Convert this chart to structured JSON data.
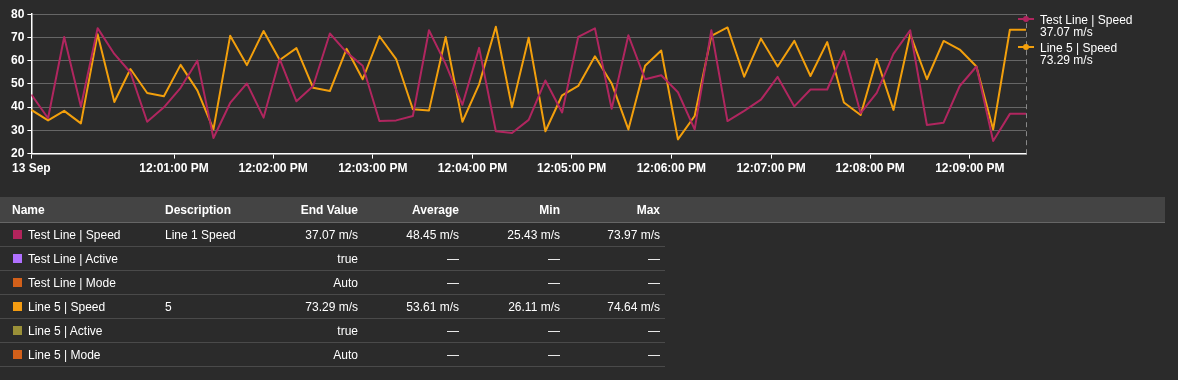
{
  "chart_data": [
    {
      "type": "line",
      "grid": "y",
      "legend": "top right",
      "marker": "none",
      "line_style": "solid",
      "xlim": [
        11.9928,
        12.1594
      ],
      "xticks": [
        {
          "value": 11.9928,
          "label": "13 Sep"
        },
        {
          "value": 12.0167,
          "label": "12:01:00 PM"
        },
        {
          "value": 12.0333,
          "label": "12:02:00 PM"
        },
        {
          "value": 12.05,
          "label": "12:03:00 PM"
        },
        {
          "value": 12.0667,
          "label": "12:04:00 PM"
        },
        {
          "value": 12.0833,
          "label": "12:05:00 PM"
        },
        {
          "value": 12.1,
          "label": "12:06:00 PM"
        },
        {
          "value": 12.1167,
          "label": "12:07:00 PM"
        },
        {
          "value": 12.1333,
          "label": "12:08:00 PM"
        },
        {
          "value": 12.15,
          "label": "12:09:00 PM"
        }
      ],
      "ylim": [
        20,
        80
      ],
      "yticks": [
        20,
        30,
        40,
        50,
        60,
        70,
        80
      ],
      "x": [
        11.9928,
        11.9956,
        11.9983,
        12.0011,
        12.0039,
        12.0067,
        12.0094,
        12.0122,
        12.015,
        12.0178,
        12.0206,
        12.0233,
        12.0261,
        12.0289,
        12.0317,
        12.0344,
        12.0372,
        12.04,
        12.0428,
        12.0456,
        12.0483,
        12.0511,
        12.0539,
        12.0567,
        12.0594,
        12.0622,
        12.065,
        12.0678,
        12.0706,
        12.0733,
        12.0761,
        12.0789,
        12.0817,
        12.0844,
        12.0872,
        12.09,
        12.0928,
        12.0956,
        12.0983,
        12.1011,
        12.1039,
        12.1067,
        12.1094,
        12.1122,
        12.115,
        12.1178,
        12.1206,
        12.1233,
        12.1261,
        12.1289,
        12.1317,
        12.1344,
        12.1372,
        12.14,
        12.1428,
        12.1456,
        12.1483,
        12.1511,
        12.1539,
        12.1567,
        12.1594
      ],
      "series": [
        {
          "name": "Test Line | Speed\n37.07 m/s",
          "color": "#b0265f",
          "values": [
            45.4,
            35.2,
            70.2,
            40.3,
            74.0,
            62.9,
            54.9,
            33.7,
            39.9,
            48.3,
            60.0,
            26.7,
            41.8,
            50.2,
            35.5,
            60.7,
            42.5,
            49.1,
            71.7,
            63.6,
            57.8,
            34.0,
            34.3,
            36.2,
            73.1,
            58.5,
            41.0,
            65.5,
            29.6,
            28.9,
            34.5,
            51.5,
            37.7,
            70.2,
            73.9,
            39.3,
            70.9,
            52.0,
            53.7,
            46.4,
            30.4,
            73.1,
            34.0,
            38.4,
            43.2,
            53.0,
            40.3,
            47.6,
            47.6,
            64.1,
            37.4,
            46.1,
            62.9,
            73.1,
            32.3,
            33.3,
            49.1,
            57.5,
            25.4,
            37.1,
            37.1
          ]
        },
        {
          "name": "Line 5 | Speed\n73.29 m/s",
          "color": "#f29f0c",
          "values": [
            38.8,
            34.3,
            38.4,
            33.0,
            71.4,
            42.2,
            56.4,
            46.1,
            44.7,
            58.2,
            47.2,
            30.4,
            70.7,
            58.1,
            72.8,
            60.3,
            65.4,
            48.3,
            46.9,
            65.1,
            52.0,
            70.5,
            60.7,
            39.1,
            38.5,
            70.2,
            33.7,
            49.8,
            74.6,
            39.9,
            69.9,
            29.6,
            45.1,
            49.1,
            61.9,
            50.2,
            30.4,
            57.8,
            64.4,
            26.1,
            36.2,
            70.7,
            74.3,
            53.1,
            69.5,
            57.5,
            68.5,
            53.4,
            68.0,
            42.0,
            36.6,
            60.7,
            38.8,
            71.4,
            52.0,
            68.5,
            64.8,
            57.5,
            30.4,
            73.3,
            73.3
          ]
        }
      ]
    },
    {
      "type": "other",
      "categories": [
        "Test Line | Speed",
        "Test Line | Active",
        "Test Line | Mode",
        "Line 5 | Speed",
        "Line 5 | Active",
        "Line 5 | Mode"
      ],
      "colors": [
        "#b3245c",
        "#b070ff",
        "#d2601a",
        "#f39c12",
        "#9a9038",
        "#d2601a"
      ],
      "y2_categories": [
        "Line 1 Speed",
        null,
        null,
        "5",
        null,
        null
      ],
      "annotations": [
        "Name",
        "Description",
        "End Value",
        "Average",
        "Min",
        "Max",
        "37.07 m/s",
        "48.45 m/s",
        "25.43 m/s",
        "73.97 m/s",
        "true",
        "—",
        "—",
        "—",
        "Auto",
        "—",
        "—",
        "—",
        "73.29 m/s",
        "53.61 m/s",
        "26.11 m/s",
        "74.64 m/s",
        "true",
        "—",
        "—",
        "—",
        "Auto",
        "—",
        "—",
        "—"
      ]
    }
  ]
}
